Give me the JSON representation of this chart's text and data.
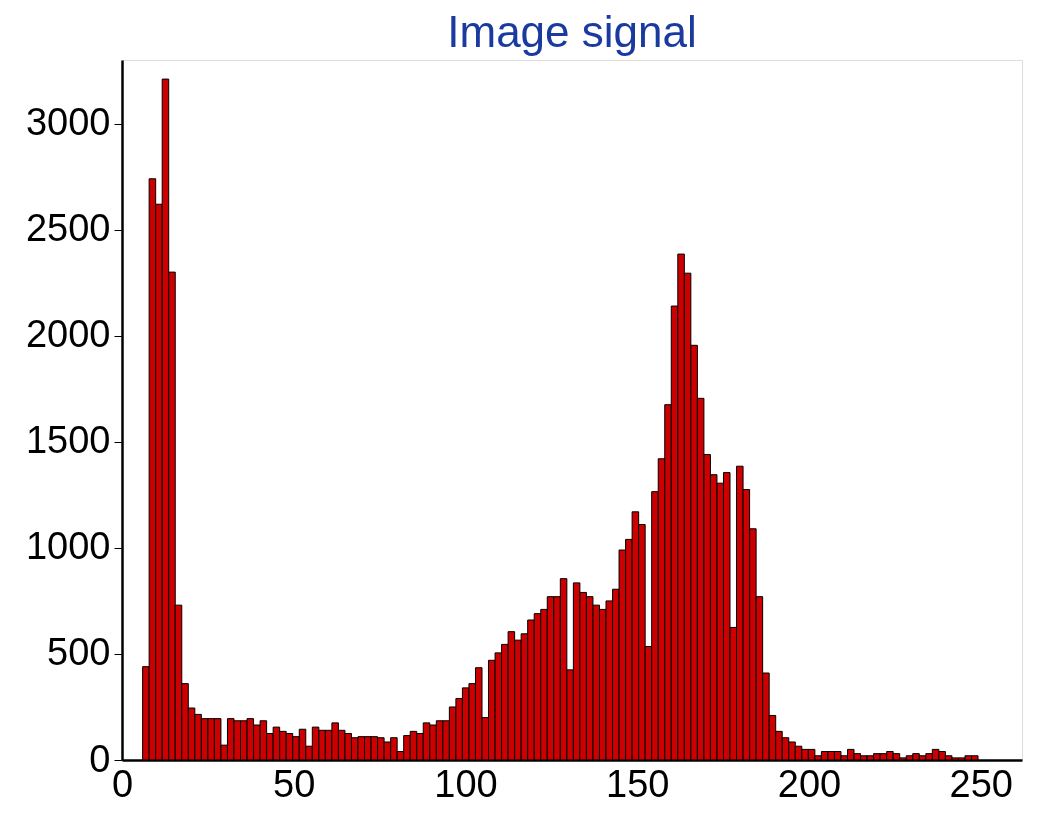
{
  "chart_data": {
    "type": "histogram",
    "title": "Image signal",
    "color": "#cc0000",
    "bins": [
      6.0,
      7.9,
      9.8,
      11.7,
      13.6,
      15.5,
      17.4,
      19.3,
      21.2,
      23.1,
      25.0,
      26.9,
      28.8,
      30.7,
      32.6,
      34.5,
      36.4,
      38.3,
      40.2,
      42.1,
      44.0,
      45.9,
      47.8,
      49.7,
      51.6,
      53.5,
      55.4,
      57.3,
      59.2,
      61.1,
      63.0,
      64.9,
      66.8,
      68.7,
      70.6,
      72.5,
      74.4,
      76.3,
      78.2,
      80.1,
      82.0,
      83.9,
      85.8,
      87.7,
      89.6,
      91.5,
      93.4,
      95.3,
      97.2,
      99.1,
      101.0,
      102.9,
      104.8,
      106.7,
      108.6,
      110.5,
      112.4,
      114.3,
      116.2,
      118.1,
      120.0,
      121.9,
      123.8,
      125.7,
      127.6,
      129.5,
      131.4,
      133.3,
      135.2,
      137.1,
      139.0,
      140.9,
      142.8,
      144.7,
      146.6,
      148.5,
      150.4,
      152.3,
      154.2,
      156.1,
      158.0,
      159.9,
      161.8,
      163.7,
      165.6,
      167.5,
      169.4,
      171.3,
      173.2,
      175.1,
      177.0,
      178.9,
      180.8,
      182.7,
      184.6,
      186.5,
      188.4,
      190.3,
      192.2,
      194.1,
      196.0,
      197.9,
      199.8,
      201.7,
      203.6,
      205.5,
      207.4,
      209.3,
      211.2,
      213.1,
      215.0,
      216.9,
      218.8,
      220.7,
      222.6,
      224.5,
      226.4,
      228.3,
      230.2,
      232.1,
      234.0,
      235.9,
      237.8,
      239.7,
      241.6,
      243.5,
      245.4,
      247.3,
      249.2
    ],
    "values": [
      440,
      2740,
      2620,
      3210,
      2300,
      730,
      360,
      245,
      215,
      195,
      195,
      195,
      70,
      195,
      185,
      185,
      195,
      165,
      185,
      125,
      155,
      135,
      125,
      110,
      145,
      65,
      155,
      140,
      140,
      175,
      140,
      125,
      105,
      110,
      110,
      110,
      105,
      85,
      105,
      40,
      115,
      135,
      125,
      175,
      165,
      185,
      185,
      250,
      290,
      340,
      360,
      435,
      200,
      470,
      505,
      545,
      605,
      565,
      595,
      660,
      690,
      710,
      770,
      770,
      855,
      425,
      835,
      790,
      770,
      730,
      710,
      750,
      805,
      990,
      1040,
      1170,
      1110,
      535,
      1265,
      1420,
      1675,
      2140,
      2385,
      2295,
      1955,
      1705,
      1440,
      1345,
      1305,
      1355,
      625,
      1385,
      1275,
      1090,
      770,
      410,
      210,
      135,
      105,
      85,
      65,
      50,
      50,
      20,
      40,
      40,
      40,
      20,
      50,
      30,
      20,
      20,
      30,
      30,
      40,
      30,
      10,
      20,
      30,
      20,
      30,
      50,
      40,
      20,
      10,
      10,
      20,
      20
    ],
    "xlim": [
      0,
      262
    ],
    "xticks": [
      0,
      50,
      100,
      150,
      200,
      250
    ],
    "ylim": [
      0,
      3300
    ],
    "yticks": [
      0,
      500,
      1000,
      1500,
      2000,
      2500,
      3000
    ]
  }
}
